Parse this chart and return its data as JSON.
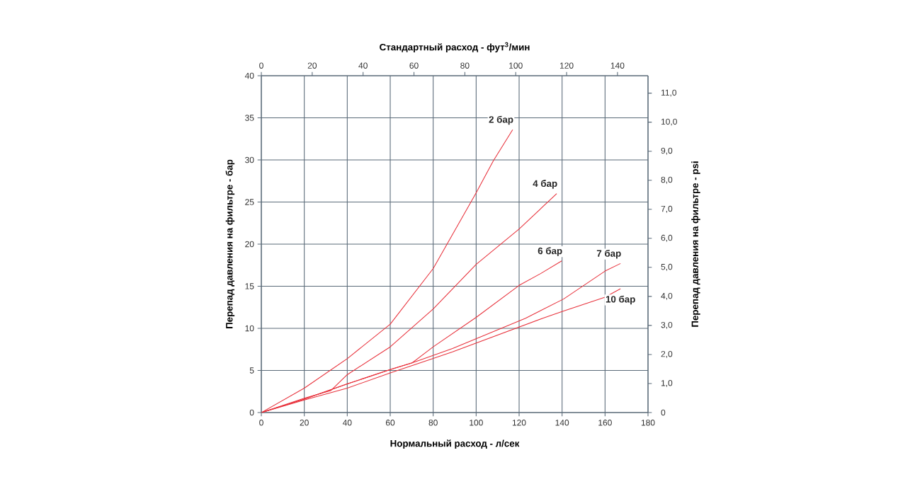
{
  "chart_data": {
    "type": "line",
    "x2label": "Стандартный расход - фут$^{3}$/мин",
    "xlabel": "Нормальный расход - л/сек",
    "ylabel": "Перепад давления на фильтре - бар",
    "y2label": "Перепад давления на фильтре - psi",
    "xlim": [
      0,
      180
    ],
    "xticks": [
      0,
      20,
      40,
      60,
      80,
      100,
      120,
      140,
      160,
      180
    ],
    "ylim": [
      0,
      40
    ],
    "yticks": [
      0,
      5,
      10,
      15,
      20,
      25,
      30,
      35,
      40
    ],
    "x2lim": [
      0,
      152
    ],
    "x2ticks": [
      0,
      20,
      40,
      60,
      80,
      100,
      120,
      140
    ],
    "y2lim": [
      0,
      11.6
    ],
    "y2ticks": [
      0,
      {
        "value": 1,
        "label": "1,0"
      },
      {
        "value": 2,
        "label": "2,0"
      },
      {
        "value": 3,
        "label": "3,0"
      },
      {
        "value": 4,
        "label": "4,0"
      },
      {
        "value": 5,
        "label": "5,0"
      },
      {
        "value": 6,
        "label": "6,0"
      },
      {
        "value": 7,
        "label": "7,0"
      },
      {
        "value": 8,
        "label": "8,0"
      },
      {
        "value": 9,
        "label": "9,0"
      },
      {
        "value": 10,
        "label": "10,0"
      },
      {
        "value": 11,
        "label": "11,0"
      }
    ],
    "grid": true,
    "marker": "none",
    "line_style": "solid",
    "series": [
      {
        "color": "#e8323c",
        "x": [
          0,
          20,
          40,
          60,
          80,
          100,
          108,
          117
        ],
        "values": [
          0,
          2.9,
          6.4,
          10.5,
          17.1,
          26.1,
          29.9,
          33.6
        ]
      },
      {
        "color": "#e8323c",
        "x": [
          0,
          20,
          32.3,
          40,
          60,
          80,
          100,
          120,
          137.5
        ],
        "values": [
          0,
          1.7,
          2.6,
          4.5,
          7.8,
          12.3,
          17.6,
          21.8,
          26.0
        ]
      },
      {
        "color": "#e8323c",
        "x": [
          0,
          20,
          40,
          60,
          70.2,
          80,
          100,
          120,
          130,
          139.8
        ],
        "values": [
          0,
          1.6,
          3.4,
          5.1,
          5.9,
          7.8,
          11.3,
          15.1,
          16.5,
          18.0
        ]
      },
      {
        "color": "#e8323c",
        "x": [
          0,
          20,
          40,
          60,
          70.2,
          89,
          123,
          140.8,
          160,
          167.2
        ],
        "values": [
          0,
          1.6,
          3.4,
          5.1,
          5.9,
          7.6,
          11.2,
          13.5,
          16.8,
          17.7
        ]
      },
      {
        "color": "#e8323c",
        "x": [
          0,
          20,
          40,
          60,
          89,
          131,
          140,
          160,
          167.2
        ],
        "values": [
          0,
          1.5,
          2.9,
          4.7,
          7.2,
          11.2,
          12.0,
          13.7,
          14.7
        ]
      }
    ],
    "annotations": [
      {
        "text": "2 бар",
        "x": 117,
        "y": 33.6
      },
      {
        "text": "4 бар",
        "x": 137.5,
        "y": 26.0
      },
      {
        "text": "6 бар",
        "x": 139.8,
        "y": 18.0
      },
      {
        "text": "7 бар",
        "x": 167.2,
        "y": 17.7
      },
      {
        "text": "10 бар",
        "x": 167.2,
        "y": 14.7
      }
    ]
  }
}
